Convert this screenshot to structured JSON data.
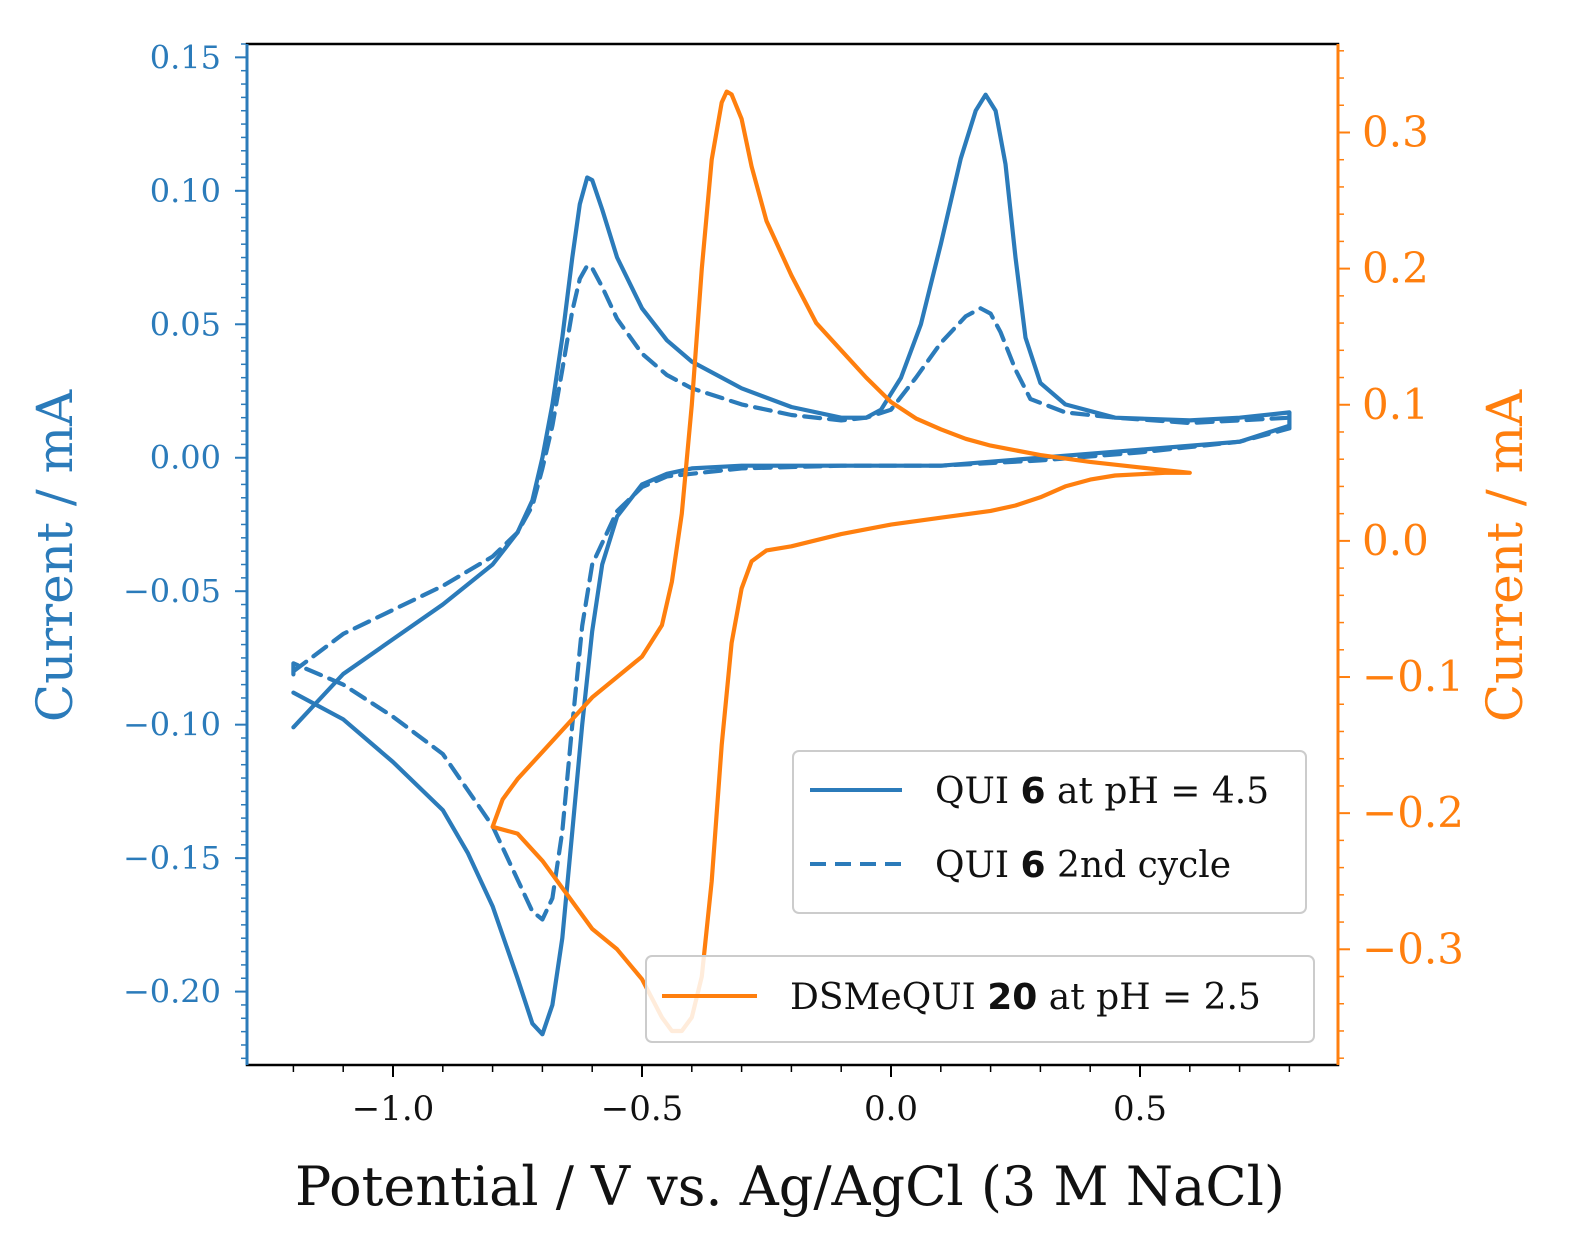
{
  "chart_data": {
    "type": "line",
    "xlabel": "Potential / V vs. Ag/AgCl (3 M NaCl)",
    "x_ticks": [
      -1.0,
      -0.5,
      0.0,
      0.5
    ],
    "x_tick_labels": [
      "−1.0",
      "−0.5",
      "0.0",
      "0.5"
    ],
    "xlim": [
      -1.3,
      0.9
    ],
    "left_axis": {
      "label": "Current / mA",
      "color": "#2b7bba",
      "ylim": [
        -0.2275,
        0.155
      ],
      "ticks": [
        0.15,
        0.1,
        0.05,
        0.0,
        -0.05,
        -0.1,
        -0.15,
        -0.2
      ],
      "tick_labels": [
        "0.15",
        "0.10",
        "0.05",
        "0.00",
        "−0.05",
        "−0.10",
        "−0.15",
        "−0.20"
      ]
    },
    "right_axis": {
      "label": "Current / mA",
      "color": "#ff7f0e",
      "ylim": [
        -0.385,
        0.365
      ],
      "ticks": [
        0.3,
        0.2,
        0.1,
        0.0,
        -0.1,
        -0.2,
        -0.3
      ],
      "tick_labels": [
        "0.3",
        "0.2",
        "0.1",
        "0.0",
        "−0.1",
        "−0.2",
        "−0.3"
      ]
    },
    "series": [
      {
        "name": "QUI 6 at pH = 4.5",
        "axis": "left",
        "style": "solid",
        "color": "#2b7bba",
        "points": [
          [
            -1.2,
            -0.101
          ],
          [
            -1.1,
            -0.081
          ],
          [
            -1.0,
            -0.068
          ],
          [
            -0.9,
            -0.055
          ],
          [
            -0.8,
            -0.04
          ],
          [
            -0.75,
            -0.028
          ],
          [
            -0.72,
            -0.016
          ],
          [
            -0.7,
            0.0
          ],
          [
            -0.68,
            0.02
          ],
          [
            -0.66,
            0.045
          ],
          [
            -0.64,
            0.075
          ],
          [
            -0.625,
            0.095
          ],
          [
            -0.61,
            0.105
          ],
          [
            -0.6,
            0.104
          ],
          [
            -0.58,
            0.093
          ],
          [
            -0.55,
            0.075
          ],
          [
            -0.5,
            0.056
          ],
          [
            -0.45,
            0.044
          ],
          [
            -0.4,
            0.036
          ],
          [
            -0.3,
            0.026
          ],
          [
            -0.2,
            0.019
          ],
          [
            -0.1,
            0.015
          ],
          [
            -0.05,
            0.015
          ],
          [
            -0.02,
            0.018
          ],
          [
            0.02,
            0.03
          ],
          [
            0.06,
            0.05
          ],
          [
            0.1,
            0.08
          ],
          [
            0.14,
            0.112
          ],
          [
            0.17,
            0.13
          ],
          [
            0.19,
            0.136
          ],
          [
            0.21,
            0.13
          ],
          [
            0.23,
            0.11
          ],
          [
            0.25,
            0.075
          ],
          [
            0.27,
            0.045
          ],
          [
            0.3,
            0.028
          ],
          [
            0.35,
            0.02
          ],
          [
            0.45,
            0.015
          ],
          [
            0.6,
            0.014
          ],
          [
            0.7,
            0.015
          ],
          [
            0.8,
            0.017
          ],
          [
            0.8,
            0.012
          ],
          [
            0.7,
            0.006
          ],
          [
            0.5,
            0.003
          ],
          [
            0.3,
            0.0
          ],
          [
            0.1,
            -0.003
          ],
          [
            -0.1,
            -0.003
          ],
          [
            -0.3,
            -0.003
          ],
          [
            -0.4,
            -0.004
          ],
          [
            -0.45,
            -0.006
          ],
          [
            -0.5,
            -0.01
          ],
          [
            -0.55,
            -0.022
          ],
          [
            -0.58,
            -0.04
          ],
          [
            -0.6,
            -0.065
          ],
          [
            -0.62,
            -0.1
          ],
          [
            -0.64,
            -0.14
          ],
          [
            -0.66,
            -0.18
          ],
          [
            -0.68,
            -0.205
          ],
          [
            -0.7,
            -0.216
          ],
          [
            -0.72,
            -0.212
          ],
          [
            -0.75,
            -0.195
          ],
          [
            -0.8,
            -0.168
          ],
          [
            -0.85,
            -0.148
          ],
          [
            -0.9,
            -0.132
          ],
          [
            -1.0,
            -0.114
          ],
          [
            -1.1,
            -0.098
          ],
          [
            -1.2,
            -0.088
          ]
        ]
      },
      {
        "name": "QUI 6 2nd cycle",
        "axis": "left",
        "style": "dashed",
        "color": "#2b7bba",
        "points": [
          [
            -1.2,
            -0.08
          ],
          [
            -1.1,
            -0.066
          ],
          [
            -1.0,
            -0.057
          ],
          [
            -0.9,
            -0.048
          ],
          [
            -0.8,
            -0.037
          ],
          [
            -0.75,
            -0.028
          ],
          [
            -0.72,
            -0.018
          ],
          [
            -0.7,
            -0.004
          ],
          [
            -0.68,
            0.012
          ],
          [
            -0.66,
            0.033
          ],
          [
            -0.64,
            0.055
          ],
          [
            -0.625,
            0.067
          ],
          [
            -0.61,
            0.072
          ],
          [
            -0.6,
            0.071
          ],
          [
            -0.58,
            0.064
          ],
          [
            -0.55,
            0.052
          ],
          [
            -0.5,
            0.039
          ],
          [
            -0.45,
            0.031
          ],
          [
            -0.4,
            0.026
          ],
          [
            -0.3,
            0.02
          ],
          [
            -0.2,
            0.016
          ],
          [
            -0.1,
            0.014
          ],
          [
            -0.05,
            0.015
          ],
          [
            0.0,
            0.018
          ],
          [
            0.05,
            0.03
          ],
          [
            0.1,
            0.043
          ],
          [
            0.15,
            0.053
          ],
          [
            0.18,
            0.056
          ],
          [
            0.2,
            0.054
          ],
          [
            0.22,
            0.047
          ],
          [
            0.25,
            0.033
          ],
          [
            0.28,
            0.022
          ],
          [
            0.35,
            0.017
          ],
          [
            0.45,
            0.015
          ],
          [
            0.6,
            0.013
          ],
          [
            0.7,
            0.014
          ],
          [
            0.8,
            0.015
          ],
          [
            0.8,
            0.011
          ],
          [
            0.7,
            0.006
          ],
          [
            0.5,
            0.002
          ],
          [
            0.3,
            -0.001
          ],
          [
            0.1,
            -0.003
          ],
          [
            -0.1,
            -0.003
          ],
          [
            -0.3,
            -0.004
          ],
          [
            -0.45,
            -0.007
          ],
          [
            -0.5,
            -0.011
          ],
          [
            -0.55,
            -0.02
          ],
          [
            -0.6,
            -0.04
          ],
          [
            -0.62,
            -0.063
          ],
          [
            -0.64,
            -0.1
          ],
          [
            -0.66,
            -0.14
          ],
          [
            -0.68,
            -0.165
          ],
          [
            -0.7,
            -0.173
          ],
          [
            -0.72,
            -0.17
          ],
          [
            -0.75,
            -0.158
          ],
          [
            -0.8,
            -0.138
          ],
          [
            -0.9,
            -0.111
          ],
          [
            -1.0,
            -0.097
          ],
          [
            -1.1,
            -0.085
          ],
          [
            -1.2,
            -0.077
          ],
          [
            -1.2,
            -0.082
          ]
        ]
      },
      {
        "name": "DSMeQUI 20 at pH = 2.5",
        "axis": "right",
        "style": "solid",
        "color": "#ff7f0e",
        "points": [
          [
            0.6,
            0.05
          ],
          [
            0.55,
            0.05
          ],
          [
            0.5,
            0.049
          ],
          [
            0.45,
            0.048
          ],
          [
            0.4,
            0.045
          ],
          [
            0.35,
            0.04
          ],
          [
            0.3,
            0.032
          ],
          [
            0.25,
            0.026
          ],
          [
            0.2,
            0.022
          ],
          [
            0.1,
            0.017
          ],
          [
            0.0,
            0.012
          ],
          [
            -0.1,
            0.005
          ],
          [
            -0.2,
            -0.004
          ],
          [
            -0.25,
            -0.007
          ],
          [
            -0.28,
            -0.015
          ],
          [
            -0.3,
            -0.035
          ],
          [
            -0.32,
            -0.075
          ],
          [
            -0.34,
            -0.15
          ],
          [
            -0.36,
            -0.25
          ],
          [
            -0.38,
            -0.32
          ],
          [
            -0.4,
            -0.35
          ],
          [
            -0.42,
            -0.36
          ],
          [
            -0.44,
            -0.36
          ],
          [
            -0.46,
            -0.35
          ],
          [
            -0.5,
            -0.322
          ],
          [
            -0.55,
            -0.3
          ],
          [
            -0.6,
            -0.285
          ],
          [
            -0.65,
            -0.26
          ],
          [
            -0.7,
            -0.235
          ],
          [
            -0.75,
            -0.215
          ],
          [
            -0.8,
            -0.21
          ],
          [
            -0.78,
            -0.19
          ],
          [
            -0.75,
            -0.175
          ],
          [
            -0.7,
            -0.155
          ],
          [
            -0.65,
            -0.135
          ],
          [
            -0.6,
            -0.115
          ],
          [
            -0.55,
            -0.1
          ],
          [
            -0.5,
            -0.085
          ],
          [
            -0.46,
            -0.062
          ],
          [
            -0.44,
            -0.03
          ],
          [
            -0.42,
            0.02
          ],
          [
            -0.4,
            0.1
          ],
          [
            -0.38,
            0.2
          ],
          [
            -0.36,
            0.28
          ],
          [
            -0.34,
            0.322
          ],
          [
            -0.33,
            0.33
          ],
          [
            -0.32,
            0.328
          ],
          [
            -0.3,
            0.31
          ],
          [
            -0.28,
            0.275
          ],
          [
            -0.25,
            0.235
          ],
          [
            -0.2,
            0.195
          ],
          [
            -0.15,
            0.16
          ],
          [
            -0.1,
            0.14
          ],
          [
            -0.05,
            0.12
          ],
          [
            0.0,
            0.102
          ],
          [
            0.05,
            0.09
          ],
          [
            0.1,
            0.082
          ],
          [
            0.15,
            0.075
          ],
          [
            0.2,
            0.07
          ],
          [
            0.3,
            0.063
          ],
          [
            0.4,
            0.058
          ],
          [
            0.5,
            0.054
          ],
          [
            0.6,
            0.05
          ]
        ]
      }
    ],
    "legend": [
      {
        "prefix": "QUI ",
        "bold": "6",
        "suffix": " at pH = 4.5",
        "series": 0,
        "placement": "lower-right"
      },
      {
        "prefix": "QUI ",
        "bold": "6",
        "suffix": " 2nd cycle",
        "series": 1,
        "placement": "lower-right"
      },
      {
        "prefix": "DSMeQUI ",
        "bold": "20",
        "suffix": " at pH = 2.5",
        "series": 2,
        "placement": "bottom-right"
      }
    ]
  }
}
